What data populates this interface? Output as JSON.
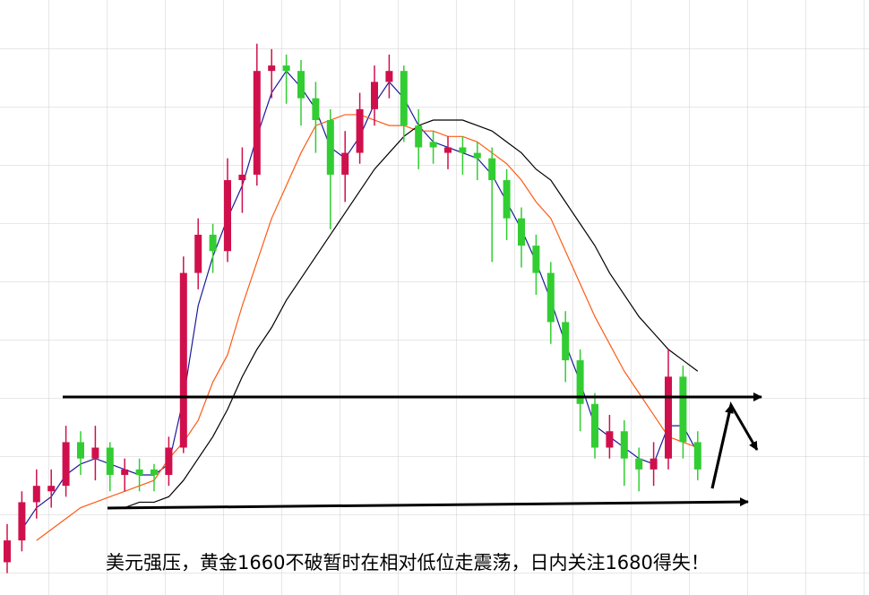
{
  "chart_data": {
    "type": "candlestick",
    "caption": "美元强压，黄金1660不破暂时在相对低位走震荡，日内关注1680得失！",
    "ylim": [
      1644,
      1753
    ],
    "up_color": "#d0104c",
    "down_color": "#32cd32",
    "ohlc": [
      [
        1650,
        1657,
        1648,
        1654
      ],
      [
        1654,
        1663,
        1652,
        1661
      ],
      [
        1661,
        1667,
        1658,
        1664
      ],
      [
        1663,
        1667,
        1660,
        1664
      ],
      [
        1664,
        1675,
        1662,
        1672
      ],
      [
        1672,
        1674,
        1666,
        1669
      ],
      [
        1669,
        1675,
        1665,
        1671
      ],
      [
        1671,
        1672,
        1663,
        1666
      ],
      [
        1666,
        1669,
        1663,
        1667
      ],
      [
        1667,
        1669,
        1663,
        1666
      ],
      [
        1667,
        1668,
        1663,
        1666
      ],
      [
        1666,
        1673,
        1664,
        1671
      ],
      [
        1671,
        1706,
        1670,
        1703
      ],
      [
        1703,
        1713,
        1700,
        1710
      ],
      [
        1710,
        1712,
        1703,
        1707
      ],
      [
        1707,
        1724,
        1705,
        1720
      ],
      [
        1720,
        1726,
        1714,
        1721
      ],
      [
        1721,
        1745,
        1719,
        1740
      ],
      [
        1740,
        1744,
        1735,
        1741
      ],
      [
        1741,
        1743,
        1734,
        1740
      ],
      [
        1740,
        1742,
        1730,
        1735
      ],
      [
        1735,
        1738,
        1725,
        1731
      ],
      [
        1731,
        1733,
        1711,
        1721
      ],
      [
        1721,
        1729,
        1716,
        1725
      ],
      [
        1725,
        1736,
        1723,
        1733
      ],
      [
        1733,
        1741,
        1730,
        1738
      ],
      [
        1738,
        1743,
        1735,
        1740
      ],
      [
        1740,
        1741,
        1727,
        1730
      ],
      [
        1730,
        1733,
        1722,
        1726
      ],
      [
        1727,
        1729,
        1723,
        1726
      ],
      [
        1725,
        1728,
        1722,
        1726
      ],
      [
        1726,
        1728,
        1721,
        1725
      ],
      [
        1725,
        1727,
        1720,
        1724
      ],
      [
        1724,
        1726,
        1705,
        1720
      ],
      [
        1720,
        1722,
        1709,
        1713
      ],
      [
        1713,
        1715,
        1704,
        1708
      ],
      [
        1708,
        1710,
        1699,
        1703
      ],
      [
        1703,
        1705,
        1690,
        1694
      ],
      [
        1694,
        1696,
        1683,
        1687
      ],
      [
        1687,
        1689,
        1674,
        1679
      ],
      [
        1679,
        1681,
        1669,
        1671
      ],
      [
        1671,
        1677,
        1669,
        1674
      ],
      [
        1674,
        1676,
        1664,
        1669
      ],
      [
        1669,
        1671,
        1663,
        1667
      ],
      [
        1667,
        1672,
        1664,
        1669
      ],
      [
        1669,
        1689,
        1667,
        1684
      ],
      [
        1684,
        1686,
        1669,
        1672
      ],
      [
        1672,
        1674,
        1665,
        1667
      ]
    ],
    "lines": [
      {
        "color": "#1a1a9a",
        "values": [
          null,
          1656,
          1660,
          1662,
          1666,
          1668,
          1669,
          1668,
          1667,
          1666,
          1666,
          1668,
          1680,
          1697,
          1706,
          1713,
          1719,
          1728,
          1736,
          1740,
          1737,
          1733,
          1726,
          1724,
          1728,
          1734,
          1738,
          1735,
          1730,
          1727,
          1726,
          1725,
          1724,
          1721,
          1716,
          1711,
          1705,
          1698,
          1690,
          1683,
          1675,
          1673,
          1671,
          1669,
          1668,
          1675,
          1675,
          1670
        ]
      },
      {
        "color": "#ff5a14",
        "values": [
          null,
          null,
          1654,
          1656,
          1658,
          1660,
          1661,
          1662,
          1663,
          1664,
          1665,
          1669,
          1672,
          1676,
          1683,
          1688,
          1697,
          1705,
          1713,
          1719,
          1725,
          1730,
          1731,
          1732,
          1732,
          1731,
          1730,
          1730,
          1729,
          1729,
          1728,
          1728,
          1727,
          1725,
          1723,
          1720,
          1716,
          1713,
          1707,
          1701,
          1695,
          1690,
          1685,
          1681,
          1677,
          1673,
          1672,
          1671
        ]
      },
      {
        "color": "#000000",
        "values": [
          null,
          null,
          null,
          null,
          null,
          null,
          null,
          1660,
          1660,
          1661,
          1661,
          1662,
          1665,
          1669,
          1673,
          1678,
          1684,
          1689,
          1693,
          1698,
          1702,
          1706,
          1710,
          1714,
          1718,
          1722,
          1725,
          1728,
          1730,
          1731,
          1731,
          1731,
          1730,
          1729,
          1727,
          1725,
          1722,
          1720,
          1716,
          1712,
          1708,
          1703,
          1699,
          1695,
          1692,
          1689,
          1687,
          1685
        ]
      }
    ]
  }
}
